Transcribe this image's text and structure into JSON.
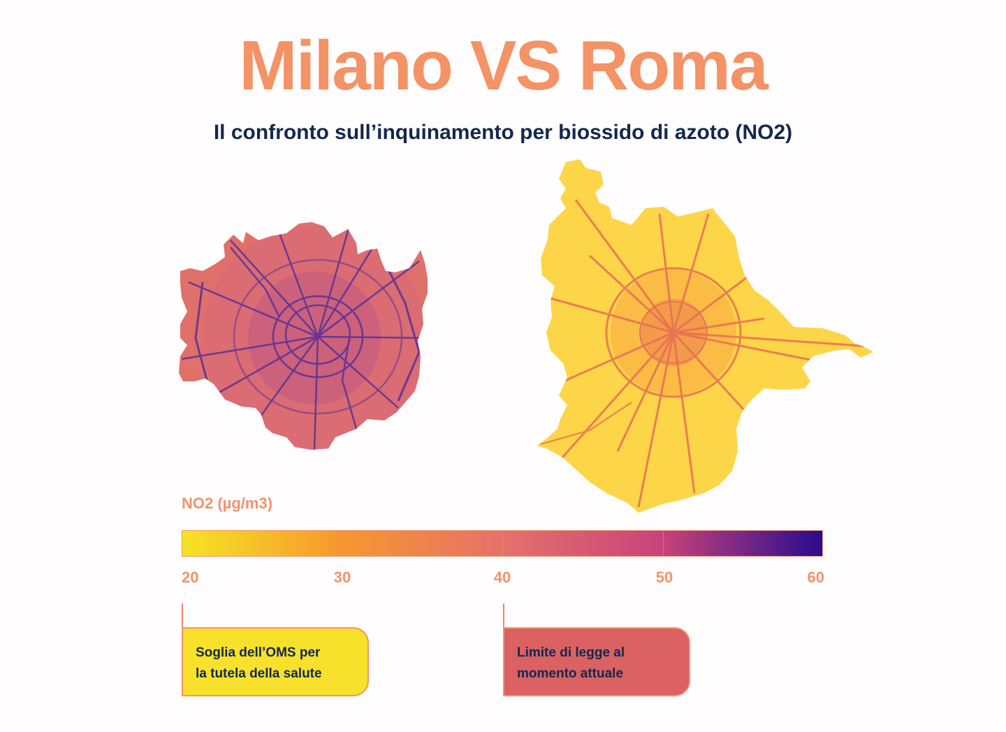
{
  "title": "Milano VS Roma",
  "subtitle": "Il confronto sull’inquinamento per biossido di azoto (NO2)",
  "maps": [
    {
      "city": "Milano",
      "typical_no2": 40,
      "road_no2": 55,
      "fill_color": "#e0706a",
      "road_color": "#5a2f95"
    },
    {
      "city": "Roma",
      "typical_no2": 23,
      "road_no2": 40,
      "fill_color": "#fdd548",
      "road_color": "#e76e54"
    }
  ],
  "legend": {
    "title": "NO2 (µg/m3)",
    "scale": "plasma",
    "range": [
      20,
      60
    ],
    "ticks": [
      "20",
      "30",
      "40",
      "50",
      "60"
    ],
    "gradient_colors": [
      "#f6e425",
      "#f7962e",
      "#e4726b",
      "#c8437b",
      "#2a0b8e"
    ]
  },
  "callouts": {
    "oms": {
      "line1": "Soglia dell’OMS per",
      "line2": "la tutela della salute",
      "value": 20,
      "color": "#f7e12a"
    },
    "law": {
      "line1": "Limite di legge al",
      "line2": "momento attuale",
      "value": 40,
      "color": "#db6163"
    }
  }
}
